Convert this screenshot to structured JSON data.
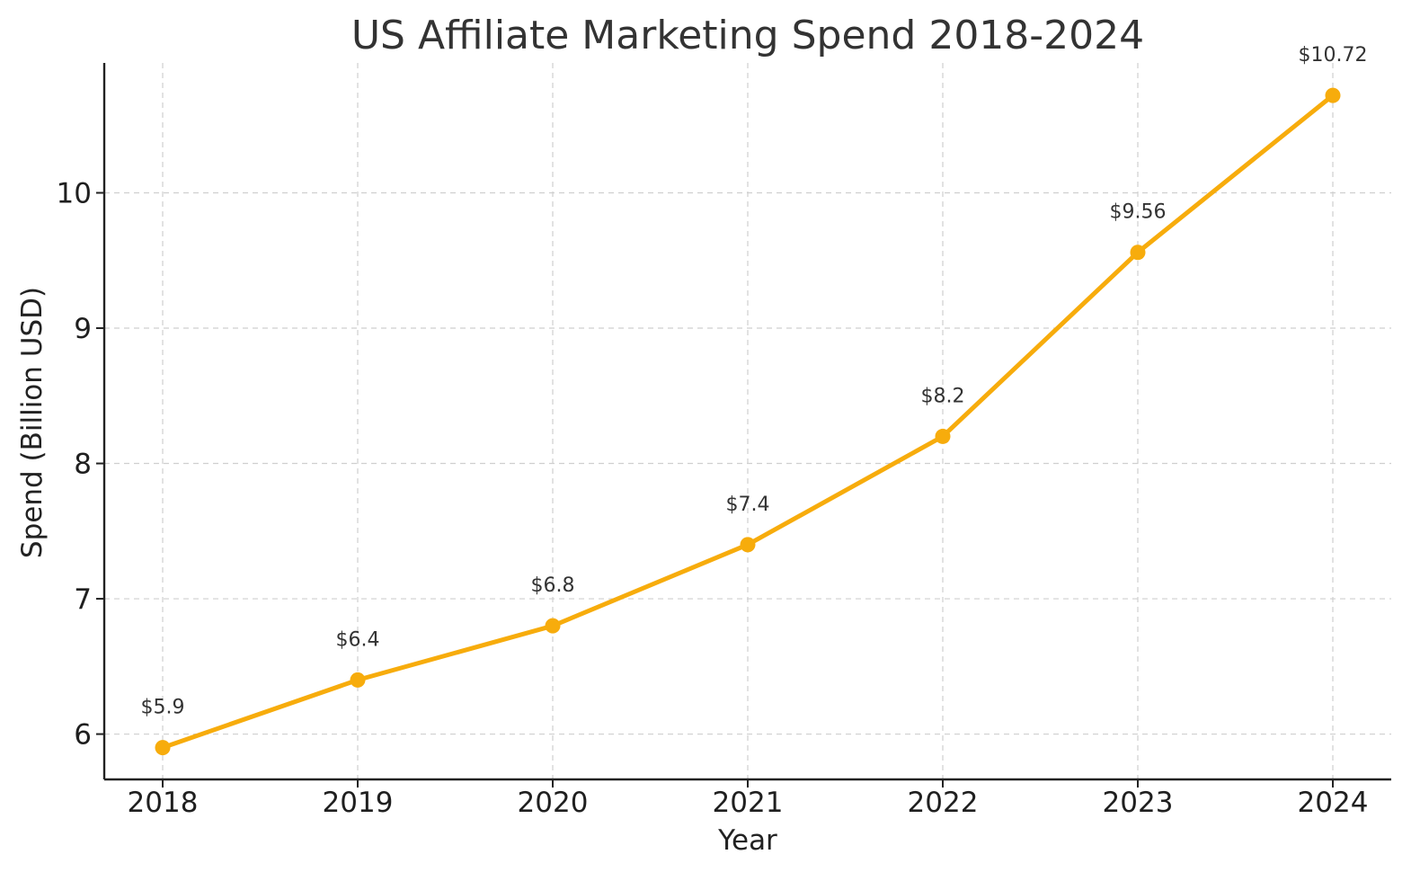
{
  "chart_data": {
    "type": "line",
    "title": "US Affiliate Marketing Spend 2018-2024",
    "xlabel": "Year",
    "ylabel": "Spend (Billion USD)",
    "categories": [
      "2018",
      "2019",
      "2020",
      "2021",
      "2022",
      "2023",
      "2024"
    ],
    "series": [
      {
        "values": [
          5.9,
          6.4,
          6.8,
          7.4,
          8.2,
          9.56,
          10.72
        ],
        "labels": [
          "$5.9",
          "$6.4",
          "$6.8",
          "$7.4",
          "$8.2",
          "$9.56",
          "$10.72"
        ],
        "color": "#F7AC0C"
      }
    ],
    "yticks": [
      "6",
      "7",
      "8",
      "9",
      "10"
    ],
    "ylim": [
      5.665,
      10.96
    ],
    "grid": true,
    "legend": false
  }
}
